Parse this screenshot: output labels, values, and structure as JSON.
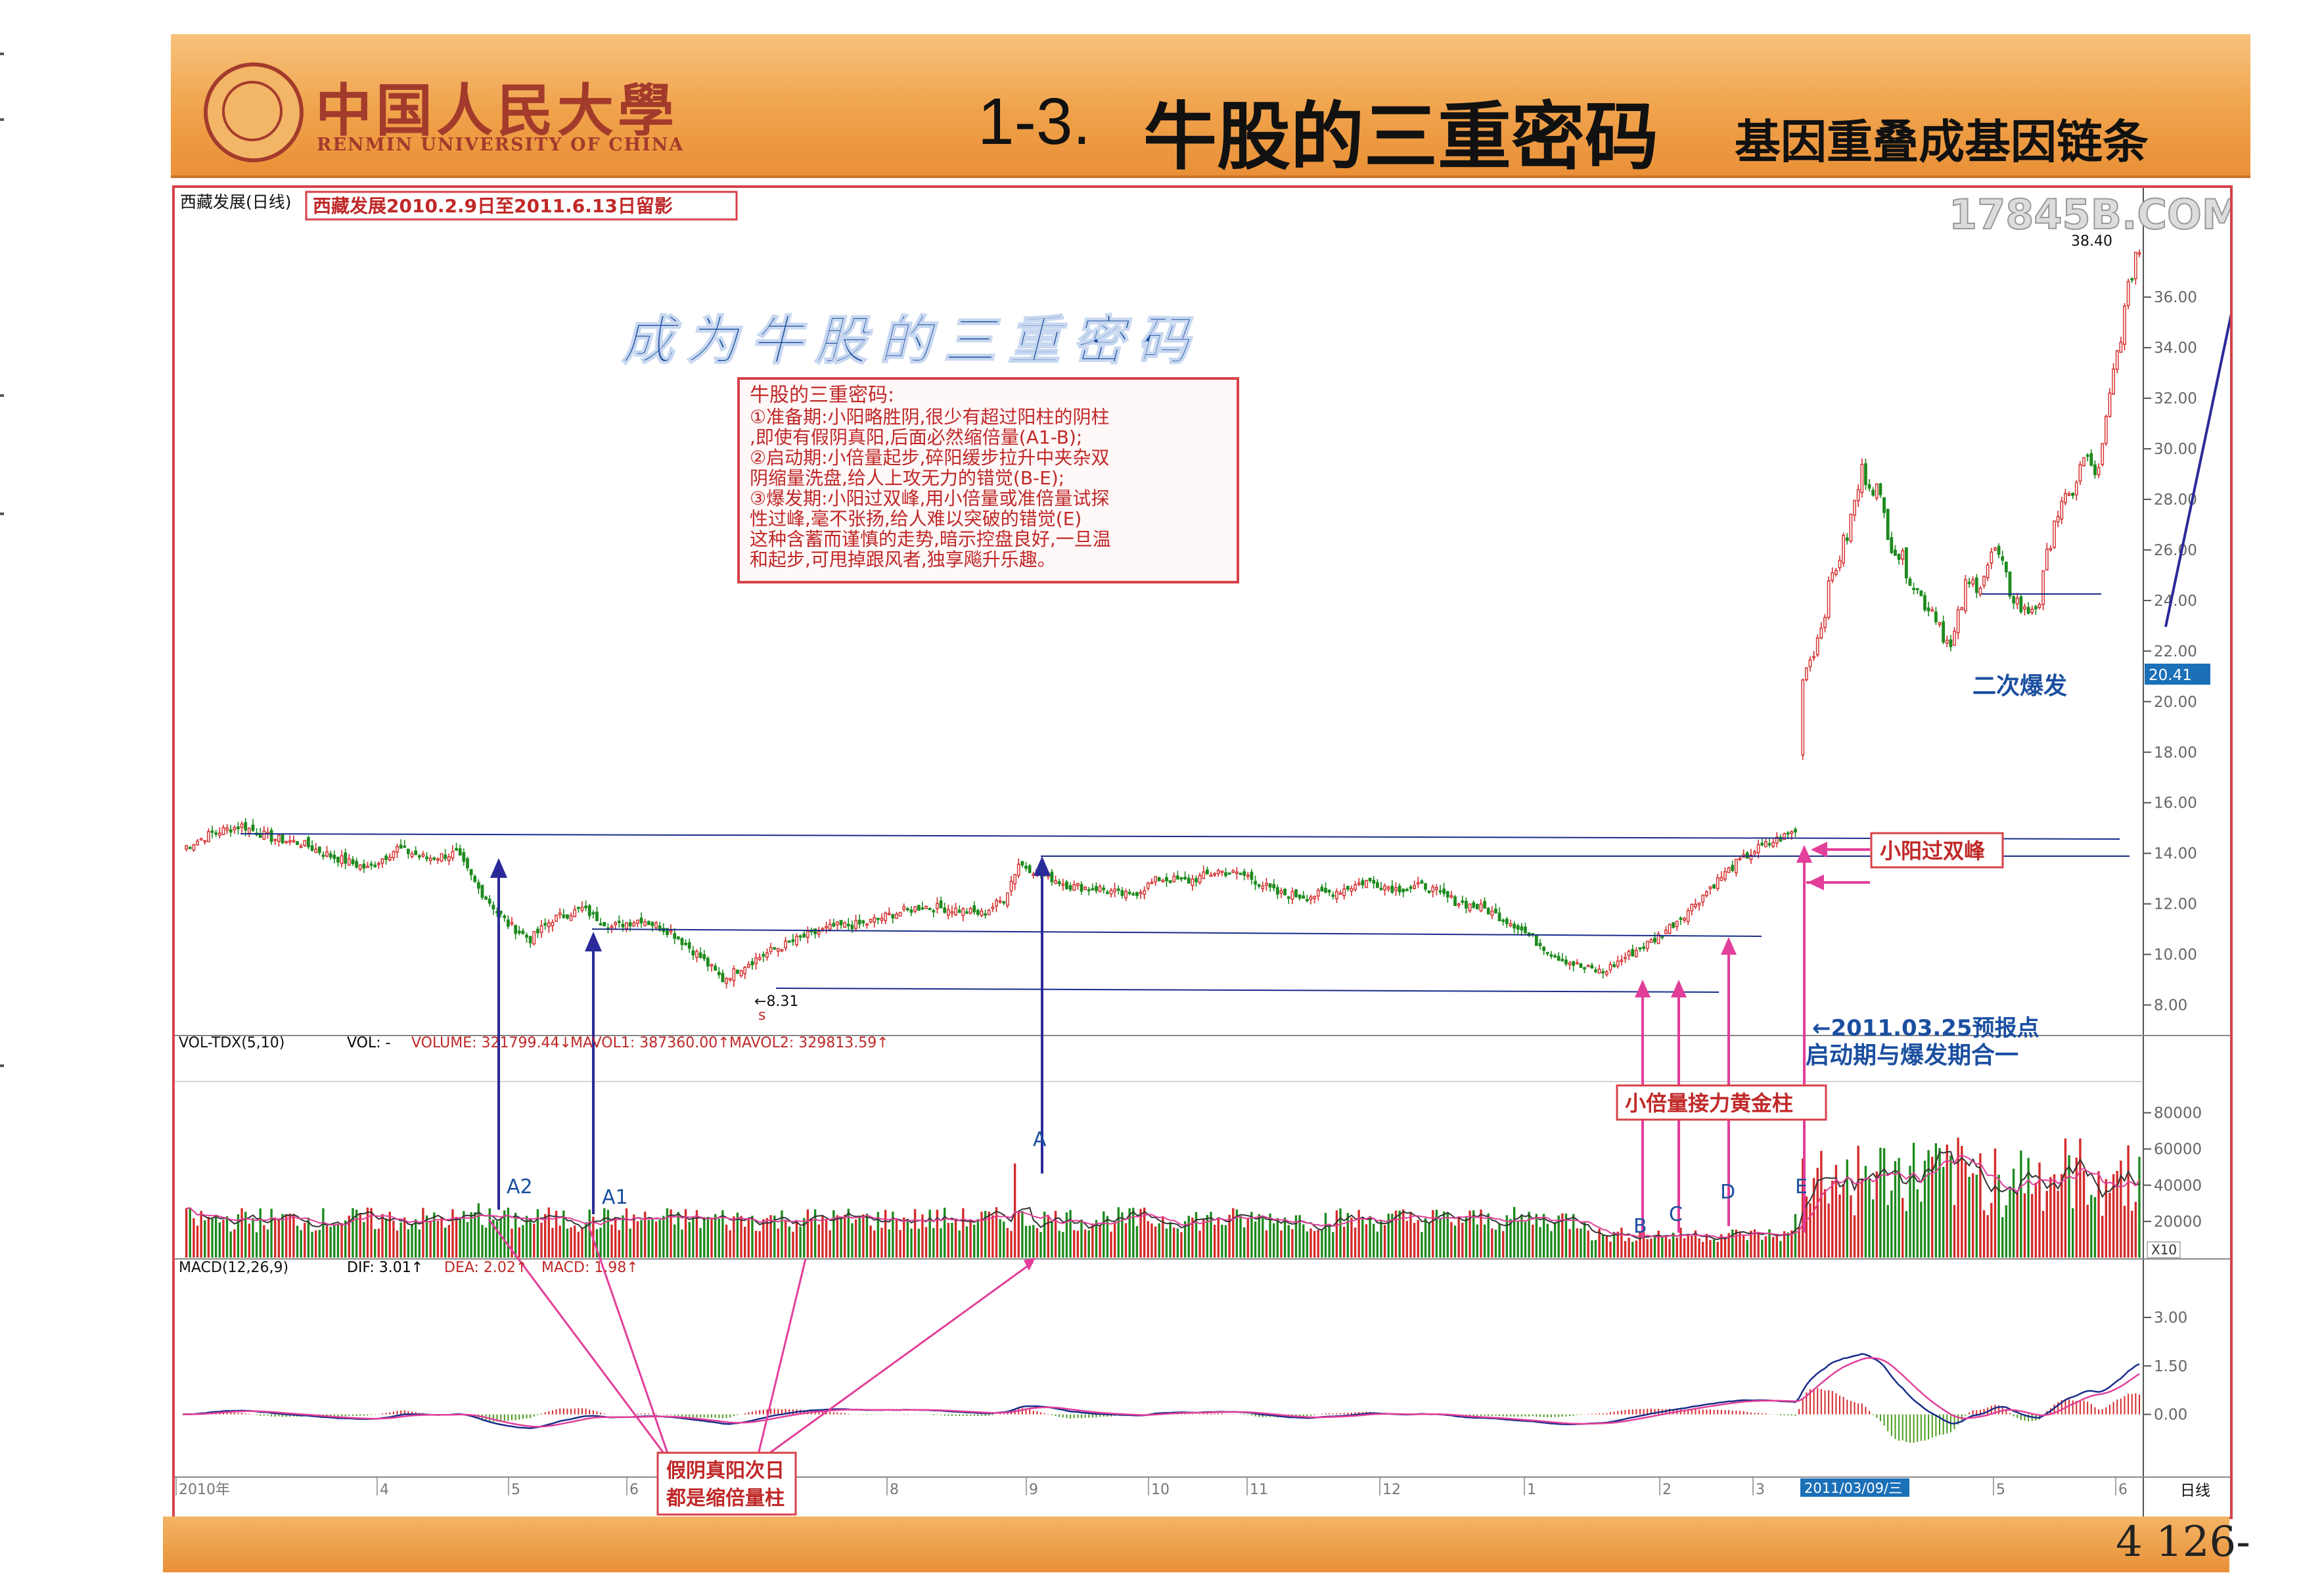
{
  "header": {
    "university_cn": "中国人民大學",
    "university_en": "RENMIN UNIVERSITY OF CHINA",
    "section_number": "1-3.",
    "section_title": "牛股的三重密码",
    "section_subtitle": "基因重叠成基因链条"
  },
  "page_number": "4 126-",
  "watermark": "17845B.COM",
  "chart_data": [
    {
      "type": "candlestick",
      "stock_label": "西藏发展(日线)",
      "period_label": "西藏发展2010.2.9日至2011.6.13日留影",
      "y_ticks": [
        "8.00",
        "10.00",
        "12.00",
        "14.00",
        "16.00",
        "18.00",
        "20.00",
        "22.00",
        "24.00",
        "26.00",
        "28.00",
        "30.00",
        "32.00",
        "34.00",
        "36.00"
      ],
      "ylim": [
        7,
        38.5
      ],
      "price_labels": {
        "low": "8.31",
        "high": "38.40",
        "last": "20.41"
      },
      "close_path": [
        [
          0,
          14.2
        ],
        [
          8,
          14.8
        ],
        [
          16,
          15.1
        ],
        [
          24,
          14.6
        ],
        [
          32,
          14.4
        ],
        [
          40,
          13.9
        ],
        [
          50,
          13.4
        ],
        [
          58,
          14.2
        ],
        [
          66,
          13.8
        ],
        [
          74,
          14.0
        ],
        [
          80,
          12.6
        ],
        [
          88,
          11.2
        ],
        [
          94,
          10.6
        ],
        [
          100,
          11.4
        ],
        [
          108,
          11.8
        ],
        [
          116,
          11.1
        ],
        [
          124,
          11.4
        ],
        [
          132,
          10.9
        ],
        [
          140,
          9.9
        ],
        [
          146,
          9.0
        ],
        [
          152,
          9.6
        ],
        [
          160,
          10.2
        ],
        [
          168,
          10.7
        ],
        [
          176,
          11.1
        ],
        [
          184,
          11.2
        ],
        [
          192,
          11.6
        ],
        [
          200,
          11.9
        ],
        [
          208,
          11.8
        ],
        [
          216,
          11.6
        ],
        [
          222,
          12.2
        ],
        [
          226,
          13.6
        ],
        [
          232,
          13.2
        ],
        [
          240,
          12.7
        ],
        [
          248,
          12.6
        ],
        [
          256,
          12.3
        ],
        [
          264,
          13.0
        ],
        [
          272,
          12.9
        ],
        [
          280,
          13.3
        ],
        [
          288,
          13.1
        ],
        [
          296,
          12.4
        ],
        [
          304,
          12.3
        ],
        [
          312,
          12.5
        ],
        [
          320,
          12.9
        ],
        [
          328,
          12.6
        ],
        [
          336,
          12.7
        ],
        [
          344,
          12.1
        ],
        [
          352,
          11.8
        ],
        [
          360,
          11.2
        ],
        [
          366,
          10.5
        ],
        [
          372,
          9.9
        ],
        [
          378,
          9.5
        ],
        [
          384,
          9.3
        ],
        [
          390,
          9.9
        ],
        [
          398,
          10.6
        ],
        [
          406,
          11.6
        ],
        [
          414,
          12.8
        ],
        [
          420,
          13.6
        ],
        [
          426,
          14.2
        ],
        [
          432,
          14.6
        ],
        [
          436,
          14.9
        ],
        [
          438,
          21.0
        ],
        [
          442,
          22.5
        ],
        [
          446,
          25.0
        ],
        [
          450,
          26.6
        ],
        [
          454,
          29.1
        ],
        [
          458,
          28.4
        ],
        [
          462,
          26.3
        ],
        [
          466,
          25.3
        ],
        [
          470,
          24.1
        ],
        [
          474,
          23.5
        ],
        [
          478,
          22.0
        ],
        [
          482,
          24.5
        ],
        [
          486,
          24.8
        ],
        [
          490,
          26.0
        ],
        [
          494,
          24.4
        ],
        [
          498,
          23.5
        ],
        [
          502,
          24.0
        ],
        [
          506,
          27.3
        ],
        [
          510,
          28.0
        ],
        [
          514,
          29.6
        ],
        [
          518,
          29.0
        ],
        [
          522,
          33.0
        ],
        [
          526,
          36.2
        ],
        [
          528,
          37.8
        ]
      ],
      "annotations": {
        "calligraphy_title": "成为牛股的三重密码",
        "note_title": "牛股的三重密码:",
        "note_lines": [
          "①准备期:小阳略胜阴,很少有超过阳柱的阴柱",
          ",即使有假阴真阳,后面必然缩倍量(A1-B);",
          "②启动期:小倍量起步,碎阳缓步拉升中夹杂双",
          "阴缩量洗盘,给人上攻无力的错觉(B-E);",
          "③爆发期:小阳过双峰,用小倍量或准倍量试探",
          "性过峰,毫不张扬,给人难以突破的错觉(E)",
          "这种含蓄而谨慎的走势,暗示控盘良好,一旦温",
          "和起步,可甩掉跟风者,独享飚升乐趣。"
        ],
        "double_peak": "小阳过双峰",
        "second_explosion": "二次爆发",
        "forecast_point": "←2011.03.25预报点",
        "forecast_desc": "启动期与爆发期合一",
        "golden_volume": "小倍量接力黄金柱",
        "fake_yin": [
          "假阴真阳次日",
          "都是缩倍量柱"
        ],
        "small_s": "s"
      }
    },
    {
      "type": "bar",
      "indicator_label": "VOL-TDX(5,10)",
      "legend": [
        {
          "text": "VOL: -",
          "color": "#000000"
        },
        {
          "text": "VOLUME: 321799.44↓",
          "color": "#c02828"
        },
        {
          "text": "MAVOL1: 387360.00↑",
          "color": "#c02828"
        },
        {
          "text": "MAVOL2: 329813.59↑",
          "color": "#c02828"
        }
      ],
      "y_ticks": [
        "20000",
        "40000",
        "60000",
        "80000"
      ],
      "ylim": [
        0,
        90000
      ],
      "unit": "X10",
      "markers": [
        "A2",
        "A1",
        "A",
        "B",
        "C",
        "D",
        "E"
      ]
    },
    {
      "type": "line",
      "indicator_label": "MACD(12,26,9)",
      "legend": [
        {
          "text": "DIF: 3.01↑",
          "color": "#000000"
        },
        {
          "text": "DEA: 2.02↑",
          "color": "#c02828"
        },
        {
          "text": "MACD: 1.98↑",
          "color": "#c02828"
        }
      ],
      "y_ticks": [
        "0.00",
        "1.50",
        "3.00"
      ],
      "ylim": [
        -1.9,
        4.2
      ],
      "x_labels": [
        "2010年",
        "4",
        "5",
        "6",
        "8",
        "9",
        "10",
        "11",
        "12",
        "1",
        "2",
        "3",
        "5",
        "6"
      ],
      "date_label": "2011/03/09/三",
      "period": "日线"
    }
  ]
}
